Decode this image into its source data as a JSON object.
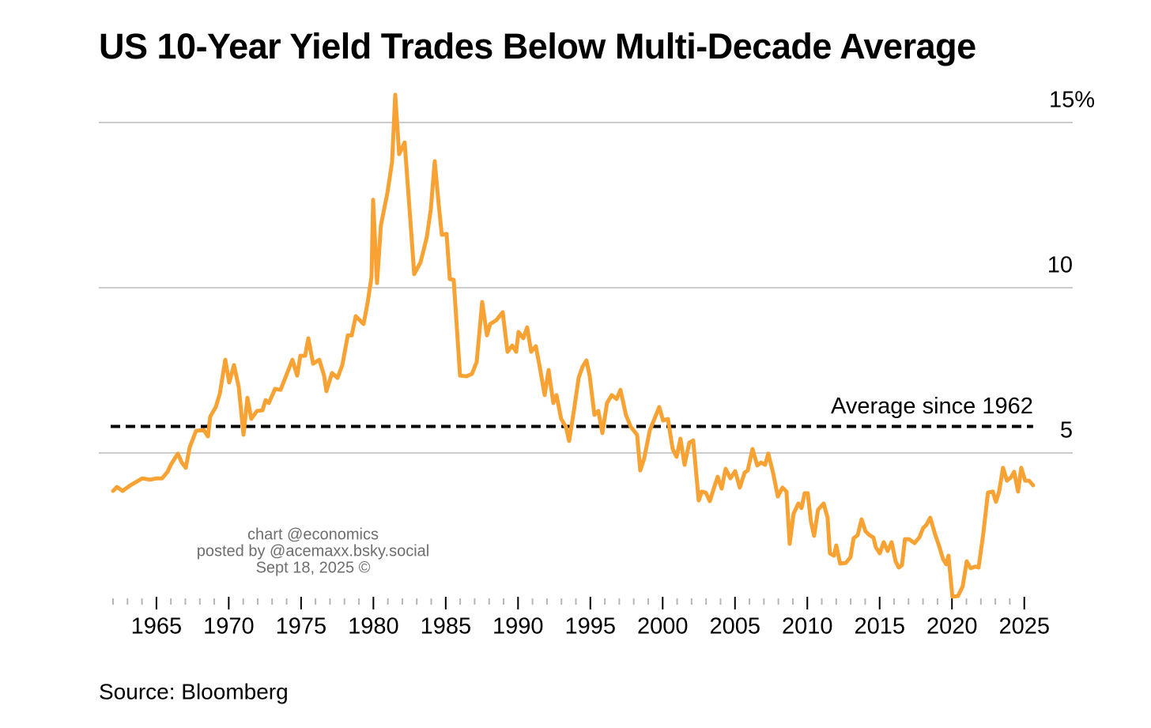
{
  "chart_data": {
    "type": "line",
    "title": "US 10-Year Yield Trades Below Multi-Decade Average",
    "source": "Source: Bloomberg",
    "watermark": [
      "chart @economics",
      "posted by @acemaxx.bsky.social",
      "Sept 18, 2025 ©"
    ],
    "xlim": [
      1962,
      2026
    ],
    "xticks": [
      1965,
      1970,
      1975,
      1980,
      1985,
      1990,
      1995,
      2000,
      2005,
      2010,
      2015,
      2020,
      2025
    ],
    "xminor_ticks": [
      1962,
      1963,
      1964,
      1966,
      1967,
      1968,
      1969,
      1971,
      1972,
      1973,
      1974,
      1976,
      1977,
      1978,
      1979,
      1981,
      1982,
      1983,
      1984,
      1986,
      1987,
      1988,
      1989,
      1991,
      1992,
      1993,
      1994,
      1996,
      1997,
      1998,
      1999,
      2001,
      2002,
      2003,
      2004,
      2006,
      2007,
      2008,
      2009,
      2011,
      2012,
      2013,
      2014,
      2016,
      2017,
      2018,
      2019,
      2021,
      2022,
      2023,
      2024
    ],
    "ylim": [
      0,
      16
    ],
    "yticks": [
      5,
      10,
      {
        "value": 15,
        "label": "15%"
      }
    ],
    "grid": true,
    "reference_line": {
      "value": 5.8,
      "label": "Average since 1962",
      "color": "#000000",
      "style": "dashed"
    },
    "x": [
      1962.0,
      1962.27,
      1962.66,
      1963.2,
      1964.02,
      1964.57,
      1965.01,
      1965.39,
      1965.77,
      1965.99,
      1966.48,
      1966.75,
      1967.03,
      1967.3,
      1967.74,
      1968.28,
      1968.56,
      1968.72,
      1969.1,
      1969.38,
      1969.76,
      1970.03,
      1970.36,
      1970.69,
      1971.02,
      1971.29,
      1971.56,
      1971.95,
      1972.33,
      1972.55,
      1972.77,
      1973.2,
      1973.58,
      1973.97,
      1974.4,
      1974.73,
      1974.95,
      1975.28,
      1975.5,
      1975.83,
      1976.26,
      1976.59,
      1976.75,
      1977.14,
      1977.52,
      1977.85,
      1978.23,
      1978.5,
      1978.78,
      1979.05,
      1979.32,
      1979.6,
      1979.87,
      1979.98,
      1980.25,
      1980.52,
      1980.96,
      1981.29,
      1981.51,
      1981.78,
      1982.16,
      1982.6,
      1982.82,
      1983.26,
      1983.53,
      1983.69,
      1983.97,
      1984.24,
      1984.51,
      1984.73,
      1985.06,
      1985.28,
      1985.55,
      1985.99,
      1986.43,
      1986.81,
      1987.14,
      1987.52,
      1987.85,
      1988.07,
      1988.5,
      1988.94,
      1989.27,
      1989.6,
      1989.87,
      1990.03,
      1990.36,
      1990.63,
      1990.91,
      1991.23,
      1991.51,
      1991.84,
      1992.11,
      1992.44,
      1992.66,
      1992.98,
      1993.31,
      1993.53,
      1993.86,
      1994.19,
      1994.46,
      1994.73,
      1994.95,
      1995.28,
      1995.55,
      1995.83,
      1996.15,
      1996.48,
      1996.81,
      1997.08,
      1997.46,
      1997.79,
      1998.23,
      1998.45,
      1998.72,
      1999.1,
      1999.43,
      1999.76,
      2000.03,
      2000.36,
      2000.69,
      2000.96,
      2001.23,
      2001.51,
      2001.84,
      2002.11,
      2002.49,
      2002.71,
      2002.98,
      2003.26,
      2003.53,
      2003.8,
      2004.08,
      2004.35,
      2004.68,
      2005.01,
      2005.33,
      2005.66,
      2005.88,
      2006.21,
      2006.54,
      2006.81,
      2007.08,
      2007.3,
      2007.63,
      2007.96,
      2008.28,
      2008.56,
      2008.78,
      2009.05,
      2009.38,
      2009.6,
      2009.81,
      2010.03,
      2010.25,
      2010.47,
      2010.74,
      2011.13,
      2011.4,
      2011.56,
      2011.84,
      2012.0,
      2012.27,
      2012.66,
      2012.98,
      2013.2,
      2013.48,
      2013.75,
      2014.02,
      2014.3,
      2014.57,
      2014.73,
      2015.01,
      2015.28,
      2015.55,
      2015.83,
      2016.1,
      2016.32,
      2016.54,
      2016.75,
      2017.03,
      2017.41,
      2017.74,
      2018.01,
      2018.23,
      2018.5,
      2018.83,
      2019.1,
      2019.38,
      2019.6,
      2019.76,
      2020.03,
      2020.42,
      2020.74,
      2021.02,
      2021.29,
      2021.62,
      2021.84,
      2022.16,
      2022.49,
      2022.82,
      2023.04,
      2023.26,
      2023.53,
      2023.8,
      2024.08,
      2024.3,
      2024.57,
      2024.79,
      2025.06,
      2025.33,
      2025.61
    ],
    "series": [
      {
        "name": "US 10-Year Yield",
        "color": "#f7a233",
        "values": [
          3.85,
          3.97,
          3.85,
          4.02,
          4.23,
          4.19,
          4.23,
          4.23,
          4.43,
          4.64,
          4.98,
          4.71,
          4.55,
          5.17,
          5.67,
          5.69,
          5.5,
          6.1,
          6.39,
          6.79,
          7.82,
          7.13,
          7.66,
          6.99,
          5.55,
          6.67,
          6.03,
          6.27,
          6.29,
          6.6,
          6.51,
          6.94,
          6.91,
          7.34,
          7.82,
          7.34,
          7.94,
          7.94,
          8.47,
          7.7,
          7.82,
          7.34,
          6.87,
          7.42,
          7.27,
          7.66,
          8.56,
          8.56,
          9.14,
          9.02,
          8.9,
          9.55,
          10.33,
          12.66,
          10.14,
          11.89,
          12.85,
          13.8,
          15.84,
          14.04,
          14.4,
          11.77,
          10.41,
          10.77,
          11.24,
          11.53,
          12.37,
          13.83,
          12.54,
          11.6,
          11.63,
          10.26,
          10.24,
          7.34,
          7.32,
          7.39,
          7.75,
          9.57,
          8.56,
          8.9,
          9.02,
          9.26,
          8.06,
          8.25,
          8.06,
          8.66,
          8.47,
          8.8,
          8.06,
          8.23,
          7.58,
          6.75,
          7.51,
          6.51,
          6.75,
          6.03,
          5.79,
          5.36,
          6.27,
          7.27,
          7.61,
          7.8,
          7.34,
          6.15,
          6.27,
          5.6,
          6.51,
          6.75,
          6.63,
          6.91,
          6.15,
          5.79,
          5.55,
          4.47,
          4.83,
          5.67,
          6.03,
          6.39,
          5.98,
          6.03,
          5.12,
          4.88,
          5.43,
          4.64,
          5.31,
          5.38,
          3.56,
          3.83,
          3.8,
          3.54,
          3.92,
          4.28,
          3.92,
          4.52,
          4.23,
          4.45,
          3.95,
          4.4,
          4.47,
          5.12,
          4.62,
          4.71,
          4.64,
          4.98,
          4.4,
          3.68,
          3.95,
          3.83,
          2.25,
          3.16,
          3.47,
          3.33,
          3.78,
          3.78,
          2.92,
          2.49,
          3.28,
          3.47,
          3.04,
          1.96,
          1.89,
          2.2,
          1.65,
          1.67,
          1.84,
          2.42,
          2.51,
          2.99,
          2.63,
          2.51,
          2.44,
          2.15,
          1.96,
          2.3,
          2.03,
          2.3,
          1.72,
          1.53,
          1.6,
          2.39,
          2.39,
          2.27,
          2.44,
          2.73,
          2.82,
          3.04,
          2.54,
          2.2,
          1.79,
          1.63,
          1.89,
          0.65,
          0.67,
          0.96,
          1.72,
          1.51,
          1.56,
          1.53,
          2.54,
          3.8,
          3.83,
          3.52,
          3.83,
          4.55,
          4.16,
          4.26,
          4.43,
          3.83,
          4.55,
          4.16,
          4.16,
          4.02
        ]
      }
    ]
  }
}
